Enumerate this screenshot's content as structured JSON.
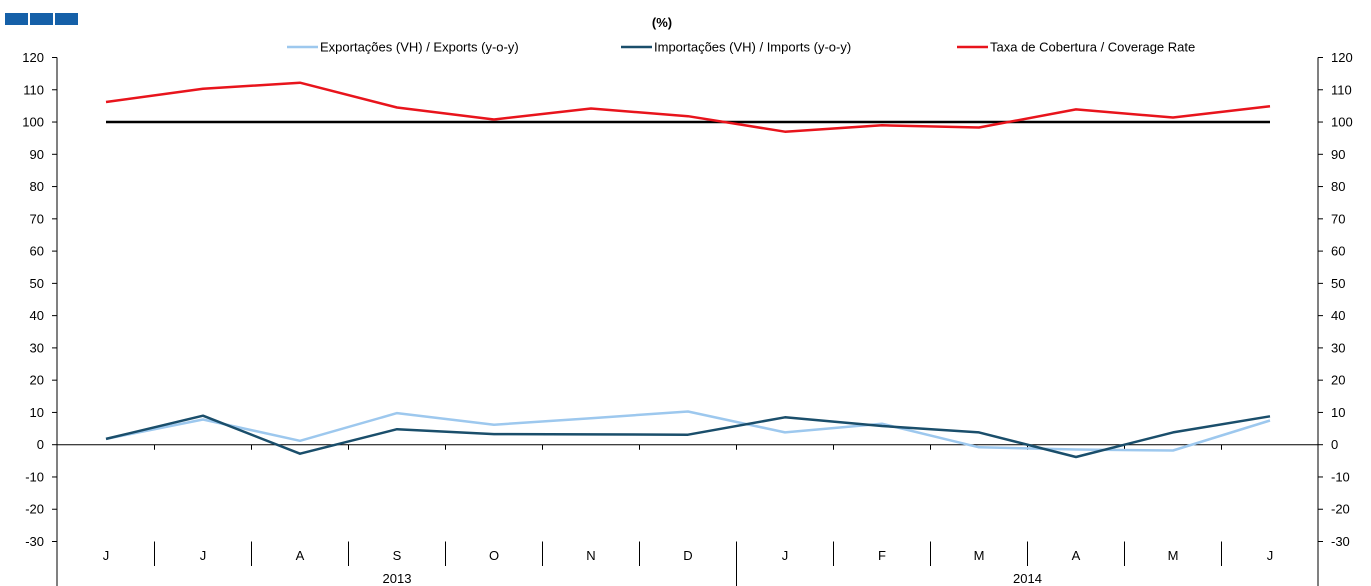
{
  "header": {
    "unit_label": "(%)"
  },
  "logo": {
    "color": "#1560a8"
  },
  "chart_data": {
    "type": "line",
    "categories": [
      "J",
      "J",
      "A",
      "S",
      "O",
      "N",
      "D",
      "J",
      "F",
      "M",
      "A",
      "M",
      "J"
    ],
    "year_groups": [
      {
        "label": "2013",
        "first_index": 0,
        "last_index": 6
      },
      {
        "label": "2014",
        "first_index": 7,
        "last_index": 12
      }
    ],
    "series": [
      {
        "name": "Exportações (VH) / Exports (y-o-y)",
        "color": "#9dc8ee",
        "values": [
          1.8,
          7.8,
          1.2,
          9.8,
          6.2,
          8.2,
          10.3,
          3.8,
          6.5,
          -0.8,
          -1.5,
          -1.8,
          7.5
        ]
      },
      {
        "name": "Importações (VH) / Imports (y-o-y)",
        "color": "#1a4e6b",
        "values": [
          1.8,
          9.0,
          -2.8,
          4.8,
          3.3,
          3.2,
          3.1,
          8.5,
          5.8,
          3.8,
          -3.8,
          3.8,
          8.8
        ]
      },
      {
        "name": "Taxa de Cobertura / Coverage Rate",
        "color": "#e8141c",
        "values": [
          106.2,
          110.3,
          112.2,
          104.5,
          100.8,
          104.2,
          101.8,
          97.0,
          99.0,
          98.3,
          103.9,
          101.4,
          104.9
        ]
      }
    ],
    "reference_line": {
      "value": 100,
      "color": "#000000"
    },
    "y_ticks": [
      120,
      110,
      100,
      90,
      80,
      70,
      60,
      50,
      40,
      30,
      20,
      10,
      0,
      -10,
      -20,
      -30
    ],
    "ylim": [
      -30,
      120
    ],
    "grid": false,
    "legend_position": "top",
    "secondary_y_axis": true
  }
}
